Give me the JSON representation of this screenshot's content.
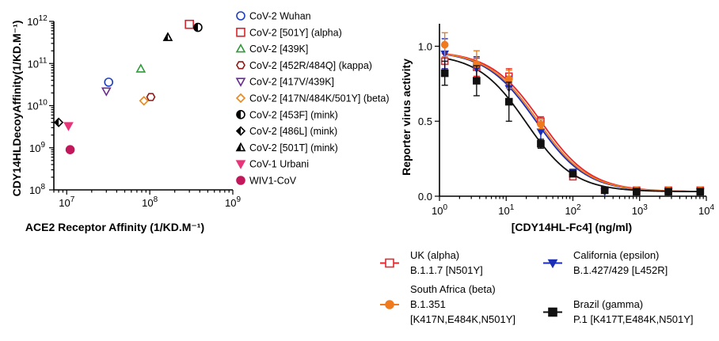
{
  "chart_data": [
    {
      "type": "scatter",
      "xlabel": "ACE2 Receptor Affinity (1/KD.M⁻¹)",
      "ylabel": "CDY14HLDecoyAffinity(1/KD.M⁻¹)",
      "xscale": "log",
      "yscale": "log",
      "xlim": [
        7000000,
        1000000000
      ],
      "ylim": [
        100000000,
        1000000000000
      ],
      "xticks": [
        {
          "base": "10",
          "exp": "7"
        },
        {
          "base": "10",
          "exp": "8"
        },
        {
          "base": "10",
          "exp": "9"
        }
      ],
      "yticks": [
        {
          "base": "10",
          "exp": "8"
        },
        {
          "base": "10",
          "exp": "9"
        },
        {
          "base": "10",
          "exp": "10"
        },
        {
          "base": "10",
          "exp": "11"
        },
        {
          "base": "10",
          "exp": "12"
        }
      ],
      "legend_position": "right",
      "series": [
        {
          "name": "CoV-2 Wuhan",
          "marker": "circle-open",
          "color": "#1f3fbf",
          "x": 32000000,
          "y": 36000000000
        },
        {
          "name": "CoV-2 [501Y] (alpha)",
          "marker": "square-open",
          "color": "#e0202a",
          "x": 300000000,
          "y": 850000000000
        },
        {
          "name": "CoV-2 [439K]",
          "marker": "triangle-open",
          "color": "#2f9a3a",
          "x": 78000000,
          "y": 75000000000
        },
        {
          "name": "CoV-2 [452R/484Q] (kappa)",
          "marker": "hexagon-open",
          "color": "#8b1a1a",
          "x": 103000000,
          "y": 16000000000
        },
        {
          "name": "CoV-2 [417V/439K]",
          "marker": "triangle-down-open",
          "color": "#6a2c91",
          "x": 30000000,
          "y": 22000000000
        },
        {
          "name": "CoV-2 [417N/484K/501Y] (beta)",
          "marker": "diamond-open",
          "color": "#e8871e",
          "x": 85000000,
          "y": 13000000000
        },
        {
          "name": "CoV-2 [453F] (mink)",
          "marker": "circle-half",
          "color": "#000000",
          "x": 380000000,
          "y": 720000000000
        },
        {
          "name": "CoV-2 [486L] (mink)",
          "marker": "diamond-half",
          "color": "#000000",
          "x": 8000000,
          "y": 4000000000
        },
        {
          "name": "CoV-2 [501T] (mink)",
          "marker": "triangle-half",
          "color": "#000000",
          "x": 165000000,
          "y": 420000000000
        },
        {
          "name": "CoV-1 Urbani",
          "marker": "triangle-down-filled",
          "color": "#e8357a",
          "x": 10500000,
          "y": 3300000000
        },
        {
          "name": "WIV1-CoV",
          "marker": "circle-filled",
          "color": "#c2185b",
          "x": 11000000,
          "y": 900000000
        }
      ]
    },
    {
      "type": "line",
      "xlabel": "[CDY14HL-Fc4] (ng/ml)",
      "ylabel": "Reporter virus activity",
      "xscale": "log",
      "xlim": [
        1,
        10000
      ],
      "ylim": [
        0,
        1.15
      ],
      "xticks": [
        {
          "base": "10",
          "exp": "0"
        },
        {
          "base": "10",
          "exp": "1"
        },
        {
          "base": "10",
          "exp": "2"
        },
        {
          "base": "10",
          "exp": "3"
        },
        {
          "base": "10",
          "exp": "4"
        }
      ],
      "yticks": [
        "0.0",
        "0.5",
        "1.0"
      ],
      "legend_position": "bottom",
      "x": [
        1.2,
        3.6,
        11,
        33,
        100,
        300,
        900,
        2700,
        8100
      ],
      "series": [
        {
          "name": "UK (alpha)",
          "subtitle": "B.1.1.7 [N501Y]",
          "color": "#e8262c",
          "marker": "square-open",
          "y": [
            0.9,
            0.86,
            0.8,
            0.5,
            0.13,
            0.04,
            0.04,
            0.04,
            0.04
          ],
          "err": [
            0.05,
            0.06,
            0.05,
            0.03,
            0.02,
            0.01,
            0.01,
            0.01,
            0.01
          ],
          "fit": {
            "top": 0.97,
            "ic50": 33,
            "hill": 1.15
          }
        },
        {
          "name": "California (epsilon)",
          "subtitle": "B.1.427/429 [L452R]",
          "color": "#1a2fb5",
          "marker": "triangle-down-filled",
          "y": [
            0.95,
            0.85,
            0.72,
            0.43,
            0.16,
            0.03,
            0.03,
            0.03,
            0.03
          ],
          "err": [
            0.1,
            0.08,
            0.08,
            0.06,
            0.02,
            0.01,
            0.01,
            0.01,
            0.01
          ],
          "fit": {
            "top": 0.97,
            "ic50": 28,
            "hill": 1.15
          }
        },
        {
          "name": "South Africa (beta)",
          "subtitle_lines": [
            "B.1.351",
            "[K417N,E484K,N501Y]"
          ],
          "color": "#f07b1e",
          "marker": "circle-filled",
          "y": [
            1.01,
            0.88,
            0.78,
            0.48,
            0.15,
            0.04,
            0.04,
            0.04,
            0.04
          ],
          "err": [
            0.08,
            0.09,
            0.06,
            0.03,
            0.02,
            0.01,
            0.01,
            0.01,
            0.01
          ],
          "fit": {
            "top": 0.97,
            "ic50": 30,
            "hill": 1.15
          }
        },
        {
          "name": "Brazil (gamma)",
          "subtitle_lines": [
            "P.1 [K417T,E484K,N501Y]"
          ],
          "color": "#111111",
          "marker": "square-filled",
          "y": [
            0.82,
            0.77,
            0.63,
            0.35,
            0.15,
            0.04,
            0.03,
            0.03,
            0.03
          ],
          "err": [
            0.08,
            0.1,
            0.13,
            0.03,
            0.02,
            0.01,
            0.01,
            0.01,
            0.01
          ],
          "fit": {
            "top": 0.95,
            "ic50": 20,
            "hill": 1.2
          }
        }
      ]
    }
  ]
}
